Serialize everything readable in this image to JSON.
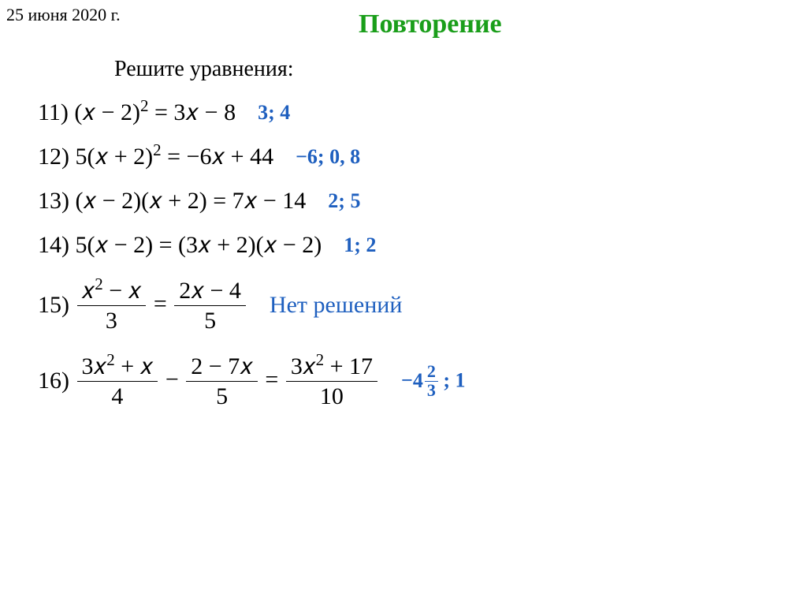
{
  "date": "25 июня 2020 г.",
  "title": "Повторение",
  "subtitle": "Решите уравнения:",
  "equations": {
    "eq11": {
      "num": "11)",
      "lhs_base": "(𝑥 − 2)",
      "lhs_exp": "2",
      "rhs": " = 3𝑥 − 8",
      "answer": "3; 4"
    },
    "eq12": {
      "num": "12)",
      "lhs_coeff": "5(𝑥 + 2)",
      "lhs_exp": "2",
      "rhs": " = −6𝑥 + 44",
      "answer": "−6; 0, 8"
    },
    "eq13": {
      "num": "13)",
      "body": "(𝑥 − 2)(𝑥 + 2) = 7𝑥 − 14",
      "answer": "2; 5"
    },
    "eq14": {
      "num": "14)",
      "body": "5(𝑥 − 2) = (3𝑥 + 2)(𝑥 − 2)",
      "answer": "1; 2"
    },
    "eq15": {
      "num": "15)",
      "frac1_num_a": "𝑥",
      "frac1_num_exp": "2",
      "frac1_num_b": " − 𝑥",
      "frac1_den": "3",
      "eq_sign": " = ",
      "frac2_num": "2𝑥 − 4",
      "frac2_den": "5",
      "answer": "Нет решений"
    },
    "eq16": {
      "num": "16)",
      "f1_num_a": "3𝑥",
      "f1_num_exp": "2",
      "f1_num_b": " + 𝑥",
      "f1_den": "4",
      "minus": " − ",
      "f2_num": "2 − 7𝑥",
      "f2_den": "5",
      "eq_sign": " = ",
      "f3_num_a": "3𝑥",
      "f3_num_exp": "2",
      "f3_num_b": " + 17",
      "f3_den": "10",
      "ans_prefix": "−",
      "ans_whole": "4",
      "ans_num": "2",
      "ans_den": "3",
      "ans_suffix": " ; 1"
    }
  },
  "colors": {
    "title": "#1a9e1a",
    "answer": "#1e5fbf",
    "text": "#000000",
    "background": "#ffffff"
  }
}
